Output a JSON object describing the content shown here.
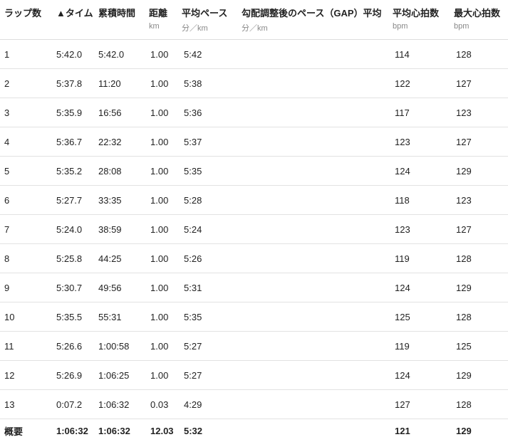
{
  "columns": [
    {
      "label": "ラップ数",
      "unit": ""
    },
    {
      "label": "▲タイム",
      "unit": ""
    },
    {
      "label": "累積時間",
      "unit": ""
    },
    {
      "label": "距離",
      "unit": "km"
    },
    {
      "label": "平均ペース",
      "unit": "分／km"
    },
    {
      "label": "勾配調整後のペース（GAP）平均",
      "unit": "分／km"
    },
    {
      "label": "平均心拍数",
      "unit": "bpm"
    },
    {
      "label": "最大心拍数",
      "unit": "bpm"
    }
  ],
  "rows": [
    [
      "1",
      "5:42.0",
      "5:42.0",
      "1.00",
      "5:42",
      "",
      "114",
      "128"
    ],
    [
      "2",
      "5:37.8",
      "11:20",
      "1.00",
      "5:38",
      "",
      "122",
      "127"
    ],
    [
      "3",
      "5:35.9",
      "16:56",
      "1.00",
      "5:36",
      "",
      "117",
      "123"
    ],
    [
      "4",
      "5:36.7",
      "22:32",
      "1.00",
      "5:37",
      "",
      "123",
      "127"
    ],
    [
      "5",
      "5:35.2",
      "28:08",
      "1.00",
      "5:35",
      "",
      "124",
      "129"
    ],
    [
      "6",
      "5:27.7",
      "33:35",
      "1.00",
      "5:28",
      "",
      "118",
      "123"
    ],
    [
      "7",
      "5:24.0",
      "38:59",
      "1.00",
      "5:24",
      "",
      "123",
      "127"
    ],
    [
      "8",
      "5:25.8",
      "44:25",
      "1.00",
      "5:26",
      "",
      "119",
      "128"
    ],
    [
      "9",
      "5:30.7",
      "49:56",
      "1.00",
      "5:31",
      "",
      "124",
      "129"
    ],
    [
      "10",
      "5:35.5",
      "55:31",
      "1.00",
      "5:35",
      "",
      "125",
      "128"
    ],
    [
      "11",
      "5:26.6",
      "1:00:58",
      "1.00",
      "5:27",
      "",
      "119",
      "125"
    ],
    [
      "12",
      "5:26.9",
      "1:06:25",
      "1.00",
      "5:27",
      "",
      "124",
      "129"
    ],
    [
      "13",
      "0:07.2",
      "1:06:32",
      "0.03",
      "4:29",
      "",
      "127",
      "128"
    ]
  ],
  "summary": [
    "概要",
    "1:06:32",
    "1:06:32",
    "12.03",
    "5:32",
    "",
    "121",
    "129"
  ]
}
